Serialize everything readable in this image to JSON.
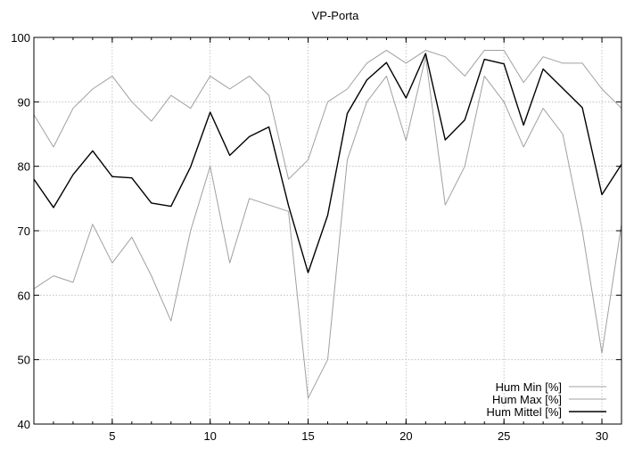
{
  "chart_data": {
    "type": "line",
    "title": "VP-Porta",
    "xlabel": "",
    "ylabel": "",
    "xlim": [
      1,
      31
    ],
    "ylim": [
      40,
      100
    ],
    "xticks": [
      5,
      10,
      15,
      20,
      25,
      30
    ],
    "yticks": [
      40,
      50,
      60,
      70,
      80,
      90,
      100
    ],
    "grid": true,
    "legend_position": "bottom-right",
    "x": [
      1,
      2,
      3,
      4,
      5,
      6,
      7,
      8,
      9,
      10,
      11,
      12,
      13,
      14,
      15,
      16,
      17,
      18,
      19,
      20,
      21,
      22,
      23,
      24,
      25,
      26,
      27,
      28,
      29,
      30,
      31
    ],
    "series": [
      {
        "name": "Hum Min [%]",
        "color": "#a0a0a0",
        "values": [
          61,
          63,
          62,
          71,
          65,
          69,
          63,
          56,
          70,
          80,
          65,
          75,
          74,
          73,
          44,
          50,
          81,
          90,
          94,
          84,
          97,
          74,
          80,
          94,
          90,
          83,
          89,
          85,
          70,
          51,
          71
        ]
      },
      {
        "name": "Hum Max [%]",
        "color": "#a0a0a0",
        "values": [
          88,
          83,
          89,
          92,
          94,
          90,
          87,
          91,
          89,
          94,
          92,
          94,
          91,
          78,
          81,
          90,
          92,
          96,
          98,
          96,
          98,
          97,
          94,
          98,
          98,
          93,
          97,
          96,
          96,
          92,
          89
        ]
      },
      {
        "name": "Hum Mittel [%]",
        "color": "#000000",
        "values": [
          78,
          73.6,
          78.7,
          82.4,
          78.4,
          78.2,
          74.3,
          73.8,
          79.9,
          88.4,
          81.7,
          84.6,
          86.1,
          73.9,
          63.5,
          72.4,
          88.2,
          93.4,
          96.1,
          90.6,
          97.5,
          84.1,
          87.2,
          96.6,
          95.9,
          86.4,
          95.1,
          92.1,
          89.1,
          75.6,
          80.3
        ]
      }
    ]
  }
}
